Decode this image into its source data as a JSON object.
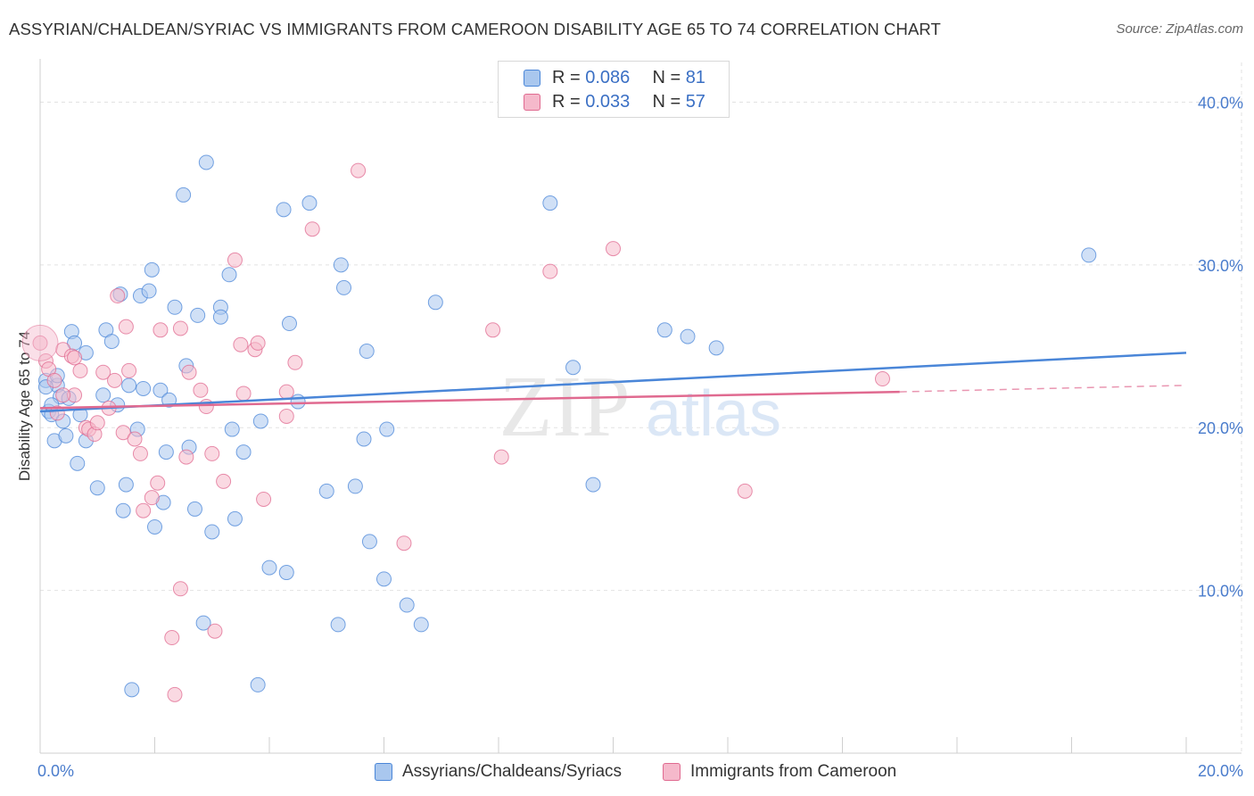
{
  "title": "ASSYRIAN/CHALDEAN/SYRIAC VS IMMIGRANTS FROM CAMEROON DISABILITY AGE 65 TO 74 CORRELATION CHART",
  "source": "Source: ZipAtlas.com",
  "watermark": {
    "zip": "ZIP",
    "atlas": "atlas"
  },
  "legend_top": [
    {
      "r_label": "R =",
      "r_value": "0.086",
      "n_label": "N =",
      "n_value": "81"
    },
    {
      "r_label": "R =",
      "r_value": "0.033",
      "n_label": "N =",
      "n_value": "57"
    }
  ],
  "chart_data": {
    "type": "scatter",
    "title": "ASSYRIAN/CHALDEAN/SYRIAC VS IMMIGRANTS FROM CAMEROON DISABILITY AGE 65 TO 74 CORRELATION CHART",
    "xlabel": "",
    "ylabel": "Disability Age 65 to 74",
    "xlim": [
      0,
      20
    ],
    "ylim": [
      0,
      42
    ],
    "x_tick_labels": [
      "0.0%",
      "20.0%"
    ],
    "y_ticks": [
      10,
      20,
      30,
      40
    ],
    "y_tick_labels": [
      "10.0%",
      "20.0%",
      "30.0%",
      "40.0%"
    ],
    "grid": true,
    "legend_position": "top-center",
    "series": [
      {
        "name": "Assyrians/Chaldeans/Syriacs",
        "color": "#4a86d8",
        "fill": "#a9c7ee",
        "trend": {
          "x": [
            0,
            20
          ],
          "y": [
            21.0,
            24.6
          ]
        },
        "points": [
          [
            0.1,
            22.9
          ],
          [
            0.15,
            21.0
          ],
          [
            0.2,
            20.8
          ],
          [
            0.25,
            19.2
          ],
          [
            0.3,
            22.6
          ],
          [
            0.35,
            21.9
          ],
          [
            0.4,
            20.4
          ],
          [
            0.45,
            19.5
          ],
          [
            0.5,
            21.8
          ],
          [
            0.55,
            25.9
          ],
          [
            0.6,
            25.2
          ],
          [
            0.65,
            17.8
          ],
          [
            0.7,
            20.8
          ],
          [
            0.8,
            24.6
          ],
          [
            0.8,
            19.2
          ],
          [
            1.0,
            16.3
          ],
          [
            1.1,
            22.0
          ],
          [
            1.15,
            26.0
          ],
          [
            1.25,
            25.3
          ],
          [
            1.35,
            21.4
          ],
          [
            1.4,
            28.2
          ],
          [
            1.45,
            14.9
          ],
          [
            1.5,
            16.5
          ],
          [
            1.55,
            22.6
          ],
          [
            1.7,
            19.9
          ],
          [
            1.75,
            28.1
          ],
          [
            1.8,
            22.4
          ],
          [
            1.9,
            28.4
          ],
          [
            1.95,
            29.7
          ],
          [
            2.0,
            13.9
          ],
          [
            2.1,
            22.3
          ],
          [
            2.15,
            15.4
          ],
          [
            2.2,
            18.5
          ],
          [
            2.25,
            21.7
          ],
          [
            2.35,
            27.4
          ],
          [
            2.5,
            34.3
          ],
          [
            2.55,
            23.8
          ],
          [
            2.6,
            18.8
          ],
          [
            2.7,
            15.0
          ],
          [
            2.75,
            26.9
          ],
          [
            2.85,
            8.0
          ],
          [
            2.9,
            36.3
          ],
          [
            3.0,
            13.6
          ],
          [
            3.15,
            27.4
          ],
          [
            3.15,
            26.8
          ],
          [
            3.3,
            29.4
          ],
          [
            3.35,
            19.9
          ],
          [
            3.4,
            14.4
          ],
          [
            3.55,
            18.5
          ],
          [
            3.8,
            4.2
          ],
          [
            3.85,
            20.4
          ],
          [
            4.0,
            11.4
          ],
          [
            4.25,
            33.4
          ],
          [
            4.3,
            11.1
          ],
          [
            4.35,
            26.4
          ],
          [
            4.5,
            21.6
          ],
          [
            4.7,
            33.8
          ],
          [
            5.0,
            16.1
          ],
          [
            5.2,
            7.9
          ],
          [
            5.25,
            30.0
          ],
          [
            5.3,
            28.6
          ],
          [
            5.5,
            16.4
          ],
          [
            5.65,
            19.3
          ],
          [
            5.7,
            24.7
          ],
          [
            5.75,
            13.0
          ],
          [
            6.0,
            10.7
          ],
          [
            6.05,
            19.9
          ],
          [
            6.4,
            9.1
          ],
          [
            6.65,
            7.9
          ],
          [
            6.9,
            27.7
          ],
          [
            8.9,
            33.8
          ],
          [
            9.3,
            23.7
          ],
          [
            9.65,
            16.5
          ],
          [
            10.9,
            26.0
          ],
          [
            11.3,
            25.6
          ],
          [
            11.8,
            24.9
          ],
          [
            18.3,
            30.6
          ],
          [
            1.6,
            3.9
          ],
          [
            0.3,
            23.2
          ],
          [
            0.1,
            22.5
          ],
          [
            0.2,
            21.4
          ]
        ]
      },
      {
        "name": "Immigrants from Cameroon",
        "color": "#e06a90",
        "fill": "#f5b9cb",
        "trend": {
          "x": [
            0,
            15
          ],
          "y": [
            21.2,
            22.2
          ]
        },
        "trend_dashed": {
          "x": [
            15,
            20
          ],
          "y": [
            22.2,
            22.6
          ]
        },
        "points": [
          [
            0.0,
            25.2
          ],
          [
            0.1,
            24.1
          ],
          [
            0.15,
            23.6
          ],
          [
            0.25,
            22.9
          ],
          [
            0.3,
            20.9
          ],
          [
            0.4,
            24.8
          ],
          [
            0.55,
            24.4
          ],
          [
            0.6,
            22.0
          ],
          [
            0.7,
            23.5
          ],
          [
            0.8,
            20.0
          ],
          [
            0.85,
            19.9
          ],
          [
            0.95,
            19.6
          ],
          [
            1.1,
            23.4
          ],
          [
            1.2,
            21.2
          ],
          [
            1.3,
            22.9
          ],
          [
            1.35,
            28.1
          ],
          [
            1.45,
            19.7
          ],
          [
            1.5,
            26.2
          ],
          [
            1.55,
            23.5
          ],
          [
            1.65,
            19.3
          ],
          [
            1.75,
            18.4
          ],
          [
            1.8,
            14.9
          ],
          [
            1.95,
            15.7
          ],
          [
            2.05,
            16.6
          ],
          [
            2.1,
            26.0
          ],
          [
            2.3,
            7.1
          ],
          [
            2.35,
            3.6
          ],
          [
            2.45,
            10.1
          ],
          [
            2.45,
            26.1
          ],
          [
            2.55,
            18.2
          ],
          [
            2.6,
            23.4
          ],
          [
            2.8,
            22.3
          ],
          [
            2.9,
            21.3
          ],
          [
            3.0,
            18.4
          ],
          [
            3.05,
            7.5
          ],
          [
            3.2,
            16.7
          ],
          [
            3.4,
            30.3
          ],
          [
            3.5,
            25.1
          ],
          [
            3.55,
            22.1
          ],
          [
            3.75,
            24.8
          ],
          [
            3.8,
            25.2
          ],
          [
            3.9,
            15.6
          ],
          [
            4.3,
            22.2
          ],
          [
            4.3,
            20.7
          ],
          [
            4.45,
            24.0
          ],
          [
            4.75,
            32.2
          ],
          [
            5.55,
            35.8
          ],
          [
            6.35,
            12.9
          ],
          [
            7.9,
            26.0
          ],
          [
            8.05,
            18.2
          ],
          [
            8.9,
            29.6
          ],
          [
            10.0,
            31.0
          ],
          [
            12.3,
            16.1
          ],
          [
            14.7,
            23.0
          ],
          [
            0.6,
            24.3
          ],
          [
            1.0,
            20.3
          ],
          [
            0.4,
            22.0
          ]
        ]
      }
    ]
  }
}
